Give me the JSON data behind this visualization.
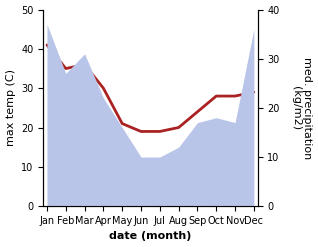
{
  "months": [
    "Jan",
    "Feb",
    "Mar",
    "Apr",
    "May",
    "Jun",
    "Jul",
    "Aug",
    "Sep",
    "Oct",
    "Nov",
    "Dec"
  ],
  "x": [
    0,
    1,
    2,
    3,
    4,
    5,
    6,
    7,
    8,
    9,
    10,
    11
  ],
  "temp": [
    41,
    35,
    36,
    30,
    21,
    19,
    19,
    20,
    24,
    28,
    28,
    29
  ],
  "precip": [
    37,
    27,
    31,
    22,
    16,
    10,
    10,
    12,
    17,
    18,
    17,
    36
  ],
  "temp_color": "#aa2222",
  "precip_fill_color": "#b8c4e8",
  "background_color": "#ffffff",
  "ylim_left": [
    0,
    50
  ],
  "ylim_right": [
    0,
    40
  ],
  "yticks_left": [
    0,
    10,
    20,
    30,
    40,
    50
  ],
  "yticks_right": [
    0,
    10,
    20,
    30,
    40
  ],
  "xlabel": "date (month)",
  "ylabel_left": "max temp (C)",
  "ylabel_right": "med. precipitation\n(kg/m2)",
  "xlabel_fontsize": 8,
  "ylabel_fontsize": 8,
  "tick_fontsize": 7,
  "linewidth": 2.0
}
